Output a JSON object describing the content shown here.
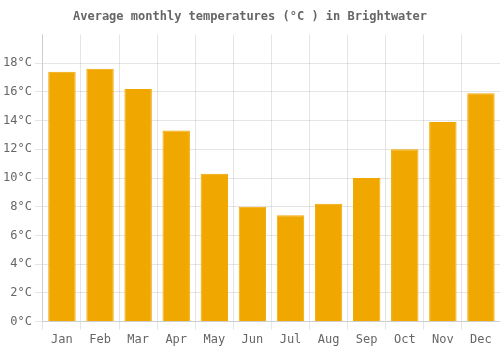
{
  "chart_data": {
    "type": "bar",
    "title": "Average monthly temperatures (°C ) in Brightwater",
    "categories": [
      "Jan",
      "Feb",
      "Mar",
      "Apr",
      "May",
      "Jun",
      "Jul",
      "Aug",
      "Sep",
      "Oct",
      "Nov",
      "Dec"
    ],
    "values": [
      17.4,
      17.6,
      16.2,
      13.3,
      10.3,
      8.0,
      7.4,
      8.2,
      10.0,
      12.0,
      13.9,
      15.9
    ],
    "color": "#F0A800",
    "ylim": [
      0,
      20
    ],
    "yticks": [
      {
        "value": 0,
        "label": "0°C"
      },
      {
        "value": 2,
        "label": "2°C"
      },
      {
        "value": 4,
        "label": "4°C"
      },
      {
        "value": 6,
        "label": "6°C"
      },
      {
        "value": 8,
        "label": "8°C"
      },
      {
        "value": 10,
        "label": "10°C"
      },
      {
        "value": 12,
        "label": "12°C"
      },
      {
        "value": 14,
        "label": "14°C"
      },
      {
        "value": 16,
        "label": "16°C"
      },
      {
        "value": 18,
        "label": "18°C"
      }
    ],
    "grid": true
  }
}
